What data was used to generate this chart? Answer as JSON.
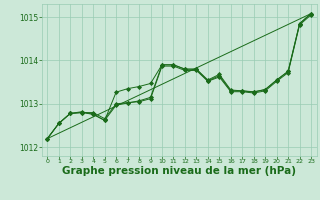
{
  "background_color": "#cce8d8",
  "grid_color": "#99ccb3",
  "line_color": "#1a6b1a",
  "xlabel": "Graphe pression niveau de la mer (hPa)",
  "xlabel_fontsize": 7.5,
  "xlabel_color": "#1a6b1a",
  "tick_color": "#1a6b1a",
  "xlim": [
    -0.5,
    23.5
  ],
  "ylim": [
    1011.8,
    1015.3
  ],
  "yticks": [
    1012,
    1013,
    1014,
    1015
  ],
  "xticks": [
    0,
    1,
    2,
    3,
    4,
    5,
    6,
    7,
    8,
    9,
    10,
    11,
    12,
    13,
    14,
    15,
    16,
    17,
    18,
    19,
    20,
    21,
    22,
    23
  ],
  "series1_x": [
    0,
    1,
    2,
    3,
    4,
    5,
    6,
    7,
    8,
    9,
    10,
    11,
    12,
    13,
    14,
    15,
    16,
    17,
    18,
    19,
    20,
    21,
    22,
    23
  ],
  "series1_y": [
    1012.2,
    1012.55,
    1012.78,
    1012.8,
    1012.8,
    1012.66,
    1013.0,
    1013.03,
    1013.05,
    1013.12,
    1013.87,
    1013.87,
    1013.77,
    1013.77,
    1013.52,
    1013.62,
    1013.28,
    1013.28,
    1013.25,
    1013.3,
    1013.52,
    1013.72,
    1014.82,
    1015.05
  ],
  "series2_x": [
    0,
    1,
    2,
    3,
    4,
    5,
    6,
    7,
    8,
    9,
    10,
    11,
    12,
    13,
    14,
    15,
    16,
    17,
    18,
    19,
    20,
    21,
    22,
    23
  ],
  "series2_y": [
    1012.2,
    1012.55,
    1012.78,
    1012.8,
    1012.76,
    1012.62,
    1012.97,
    1013.02,
    1013.07,
    1013.15,
    1013.9,
    1013.9,
    1013.8,
    1013.8,
    1013.53,
    1013.65,
    1013.3,
    1013.3,
    1013.27,
    1013.33,
    1013.55,
    1013.75,
    1014.85,
    1015.08
  ],
  "series3_x": [
    0,
    1,
    2,
    3,
    4,
    5,
    6,
    7,
    8,
    9,
    10,
    11,
    12,
    13,
    14,
    15,
    16,
    17,
    18,
    19,
    20,
    21,
    22,
    23
  ],
  "series3_y": [
    1012.2,
    1012.55,
    1012.78,
    1012.82,
    1012.76,
    1012.62,
    1013.27,
    1013.35,
    1013.4,
    1013.47,
    1013.9,
    1013.9,
    1013.8,
    1013.8,
    1013.55,
    1013.68,
    1013.32,
    1013.3,
    1013.28,
    1013.33,
    1013.55,
    1013.75,
    1014.85,
    1015.08
  ],
  "series4_x": [
    0,
    23
  ],
  "series4_y": [
    1012.2,
    1015.08
  ]
}
